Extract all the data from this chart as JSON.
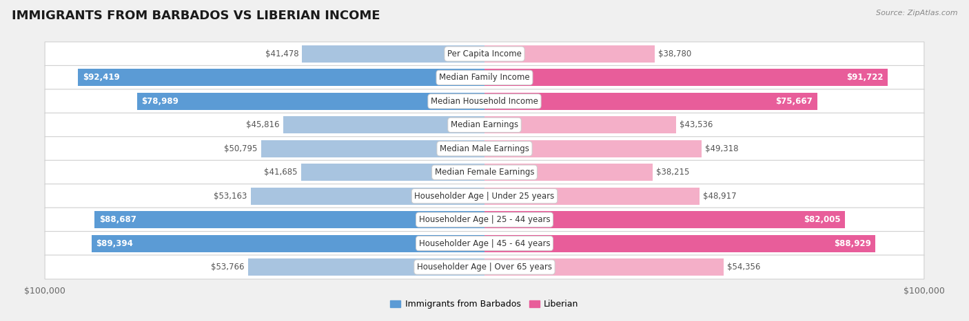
{
  "title": "IMMIGRANTS FROM BARBADOS VS LIBERIAN INCOME",
  "source": "Source: ZipAtlas.com",
  "categories": [
    "Per Capita Income",
    "Median Family Income",
    "Median Household Income",
    "Median Earnings",
    "Median Male Earnings",
    "Median Female Earnings",
    "Householder Age | Under 25 years",
    "Householder Age | 25 - 44 years",
    "Householder Age | 45 - 64 years",
    "Householder Age | Over 65 years"
  ],
  "barbados_values": [
    41478,
    92419,
    78989,
    45816,
    50795,
    41685,
    53163,
    88687,
    89394,
    53766
  ],
  "liberian_values": [
    38780,
    91722,
    75667,
    43536,
    49318,
    38215,
    48917,
    82005,
    88929,
    54356
  ],
  "barbados_labels": [
    "$41,478",
    "$92,419",
    "$78,989",
    "$45,816",
    "$50,795",
    "$41,685",
    "$53,163",
    "$88,687",
    "$89,394",
    "$53,766"
  ],
  "liberian_labels": [
    "$38,780",
    "$91,722",
    "$75,667",
    "$43,536",
    "$49,318",
    "$38,215",
    "$48,917",
    "$82,005",
    "$88,929",
    "$54,356"
  ],
  "max_value": 100000,
  "barbados_light_color": "#a8c4e0",
  "barbados_dark_color": "#5b9bd5",
  "liberian_light_color": "#f4afc8",
  "liberian_dark_color": "#e85d9a",
  "bg_color": "#f0f0f0",
  "row_bg_color": "#ffffff",
  "inside_threshold": 65000,
  "title_fontsize": 13,
  "label_fontsize": 8.5,
  "value_fontsize": 8.5,
  "tick_fontsize": 9
}
